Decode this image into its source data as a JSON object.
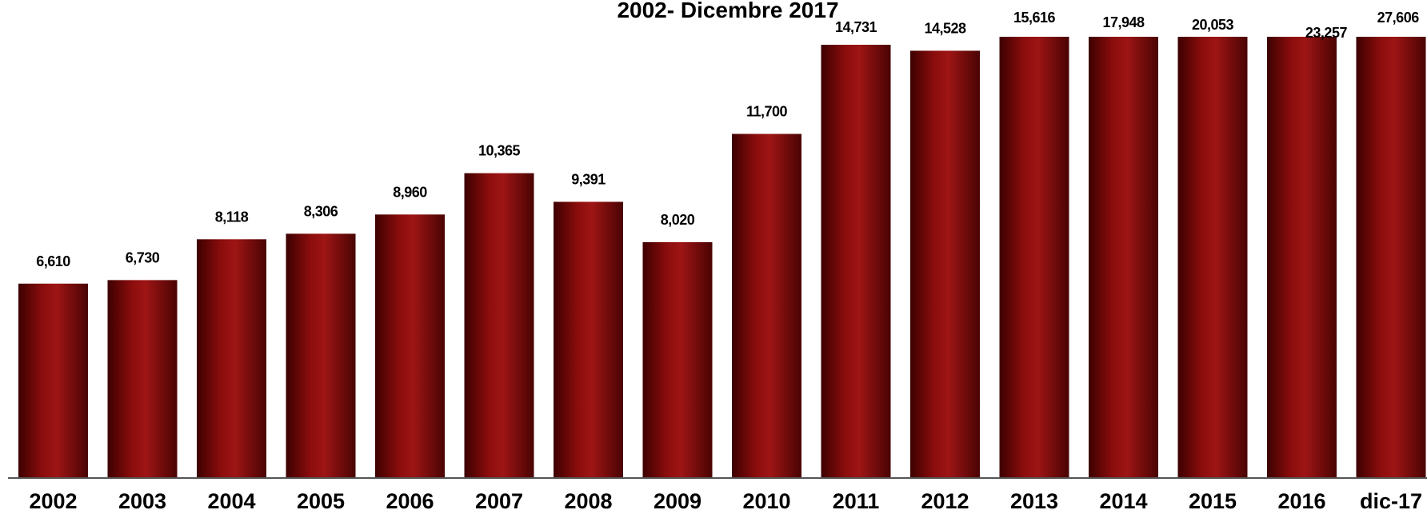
{
  "chart_data": {
    "type": "bar",
    "title": "2002- Dicembre 2017",
    "categories": [
      "2002",
      "2003",
      "2004",
      "2005",
      "2006",
      "2007",
      "2008",
      "2009",
      "2010",
      "2011",
      "2012",
      "2013",
      "2014",
      "2015",
      "2016",
      "dic-17"
    ],
    "values": [
      6610,
      6730,
      8118,
      8306,
      8960,
      10365,
      9391,
      8020,
      11700,
      14731,
      14528,
      15616,
      17948,
      20053,
      23257,
      27606
    ],
    "data_labels": [
      "6,610",
      "6,730",
      "8,118",
      "8,306",
      "8,960",
      "10,365",
      "9,391",
      "8,020",
      "11,700",
      "14,731",
      "14,528",
      "15,616",
      "17,948",
      "20,053",
      "23,257",
      "27,606"
    ],
    "ylim": [
      0,
      14731
    ],
    "clipped_above": 14731,
    "grid": false,
    "legend": "none",
    "xlabel": "",
    "ylabel": "",
    "colors": {
      "bar_dark": "#3d0000",
      "bar_mid": "#8c0d0d",
      "bar_light": "#9e1515",
      "axis": "#555555"
    }
  }
}
